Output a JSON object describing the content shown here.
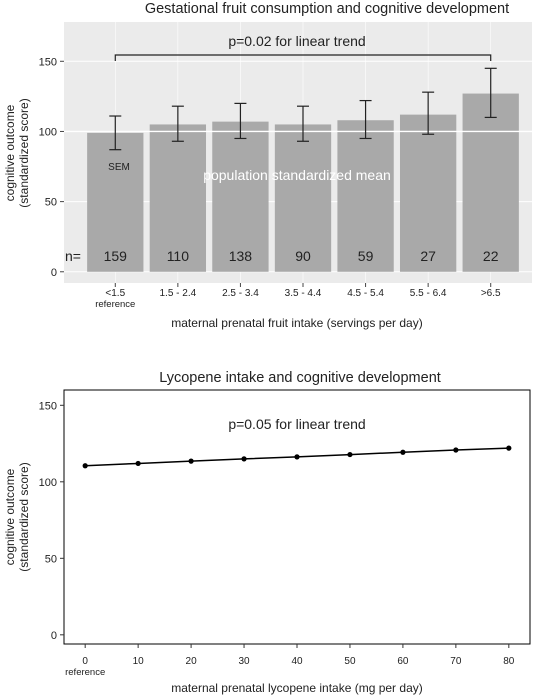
{
  "chart_data": [
    {
      "type": "bar",
      "title": "Gestational fruit consumption and cognitive development",
      "xlabel": "maternal prenatal fruit intake  (servings per day)",
      "ylabel": [
        "cognitive outcome",
        "(standardized score)"
      ],
      "ylim": [
        -8,
        178
      ],
      "yticks": [
        0,
        50,
        100,
        150
      ],
      "grid": true,
      "categories": [
        "<1.5",
        "1.5 - 2.4",
        "2.5 - 3.4",
        "3.5 - 4.4",
        "4.5 - 5.4",
        "5.5 - 6.4",
        ">6.5"
      ],
      "reference_label": "reference",
      "values": [
        99,
        105,
        107,
        105,
        108,
        112,
        127
      ],
      "error_low": [
        87,
        93,
        95,
        93,
        95,
        98,
        110
      ],
      "error_high": [
        111,
        118,
        120,
        118,
        122,
        128,
        145
      ],
      "n_label": "n=",
      "n_values": [
        "159",
        "110",
        "138",
        "90",
        "59",
        "27",
        "22"
      ],
      "sem_label": "SEM",
      "reference_line": {
        "value": 100,
        "label": "population standardized mean"
      },
      "trend_annotation": "p=0.02 for linear trend",
      "colors": {
        "bar": "#a9a9a9",
        "panel": "#ebebeb",
        "grid": "#ffffff",
        "errorbar": "#222222"
      }
    },
    {
      "type": "line",
      "title": "Lycopene intake and cognitive development",
      "xlabel": "maternal prenatal lycopene intake  (mg per day)",
      "ylabel": [
        "cognitive outcome",
        "(standardized score)"
      ],
      "xlim": [
        -4,
        84
      ],
      "ylim": [
        -6,
        160
      ],
      "xticks": [
        0,
        10,
        20,
        30,
        40,
        50,
        60,
        70,
        80
      ],
      "yticks": [
        0,
        50,
        100,
        150
      ],
      "reference_label": "reference",
      "x": [
        0,
        10,
        20,
        30,
        40,
        50,
        60,
        70,
        80
      ],
      "y": [
        110.5,
        112,
        113.5,
        115,
        116.3,
        117.8,
        119.3,
        120.8,
        122
      ],
      "trend_annotation": "p=0.05 for linear trend",
      "grid": false,
      "colors": {
        "line": "#000000",
        "panel": "#ffffff"
      }
    }
  ]
}
